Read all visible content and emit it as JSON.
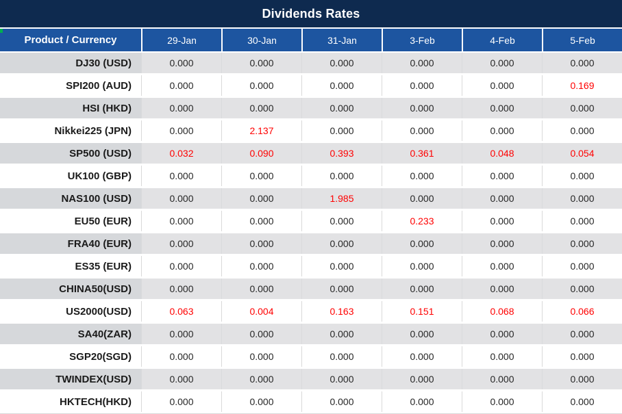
{
  "title": "Dividends Rates",
  "header": {
    "product_label": "Product / Currency",
    "dates": [
      "29-Jan",
      "30-Jan",
      "31-Jan",
      "3-Feb",
      "4-Feb",
      "5-Feb"
    ]
  },
  "rows": [
    {
      "label": "DJ30 (USD)",
      "values": [
        "0.000",
        "0.000",
        "0.000",
        "0.000",
        "0.000",
        "0.000"
      ],
      "red": [
        false,
        false,
        false,
        false,
        false,
        false
      ]
    },
    {
      "label": "SPI200 (AUD)",
      "values": [
        "0.000",
        "0.000",
        "0.000",
        "0.000",
        "0.000",
        "0.169"
      ],
      "red": [
        false,
        false,
        false,
        false,
        false,
        true
      ]
    },
    {
      "label": "HSI (HKD)",
      "values": [
        "0.000",
        "0.000",
        "0.000",
        "0.000",
        "0.000",
        "0.000"
      ],
      "red": [
        false,
        false,
        false,
        false,
        false,
        false
      ]
    },
    {
      "label": "Nikkei225 (JPN)",
      "values": [
        "0.000",
        "2.137",
        "0.000",
        "0.000",
        "0.000",
        "0.000"
      ],
      "red": [
        false,
        true,
        false,
        false,
        false,
        false
      ]
    },
    {
      "label": "SP500 (USD)",
      "values": [
        "0.032",
        "0.090",
        "0.393",
        "0.361",
        "0.048",
        "0.054"
      ],
      "red": [
        true,
        true,
        true,
        true,
        true,
        true
      ]
    },
    {
      "label": "UK100 (GBP)",
      "values": [
        "0.000",
        "0.000",
        "0.000",
        "0.000",
        "0.000",
        "0.000"
      ],
      "red": [
        false,
        false,
        false,
        false,
        false,
        false
      ]
    },
    {
      "label": "NAS100 (USD)",
      "values": [
        "0.000",
        "0.000",
        "1.985",
        "0.000",
        "0.000",
        "0.000"
      ],
      "red": [
        false,
        false,
        true,
        false,
        false,
        false
      ]
    },
    {
      "label": "EU50 (EUR)",
      "values": [
        "0.000",
        "0.000",
        "0.000",
        "0.233",
        "0.000",
        "0.000"
      ],
      "red": [
        false,
        false,
        false,
        true,
        false,
        false
      ]
    },
    {
      "label": "FRA40 (EUR)",
      "values": [
        "0.000",
        "0.000",
        "0.000",
        "0.000",
        "0.000",
        "0.000"
      ],
      "red": [
        false,
        false,
        false,
        false,
        false,
        false
      ]
    },
    {
      "label": "ES35 (EUR)",
      "values": [
        "0.000",
        "0.000",
        "0.000",
        "0.000",
        "0.000",
        "0.000"
      ],
      "red": [
        false,
        false,
        false,
        false,
        false,
        false
      ]
    },
    {
      "label": "CHINA50(USD)",
      "values": [
        "0.000",
        "0.000",
        "0.000",
        "0.000",
        "0.000",
        "0.000"
      ],
      "red": [
        false,
        false,
        false,
        false,
        false,
        false
      ]
    },
    {
      "label": "US2000(USD)",
      "values": [
        "0.063",
        "0.004",
        "0.163",
        "0.151",
        "0.068",
        "0.066"
      ],
      "red": [
        true,
        true,
        true,
        true,
        true,
        true
      ]
    },
    {
      "label": "SA40(ZAR)",
      "values": [
        "0.000",
        "0.000",
        "0.000",
        "0.000",
        "0.000",
        "0.000"
      ],
      "red": [
        false,
        false,
        false,
        false,
        false,
        false
      ]
    },
    {
      "label": "SGP20(SGD)",
      "values": [
        "0.000",
        "0.000",
        "0.000",
        "0.000",
        "0.000",
        "0.000"
      ],
      "red": [
        false,
        false,
        false,
        false,
        false,
        false
      ]
    },
    {
      "label": "TWINDEX(USD)",
      "values": [
        "0.000",
        "0.000",
        "0.000",
        "0.000",
        "0.000",
        "0.000"
      ],
      "red": [
        false,
        false,
        false,
        false,
        false,
        false
      ]
    },
    {
      "label": "HKTECH(HKD)",
      "values": [
        "0.000",
        "0.000",
        "0.000",
        "0.000",
        "0.000",
        "0.000"
      ],
      "red": [
        false,
        false,
        false,
        false,
        false,
        false
      ]
    }
  ],
  "colors": {
    "title_bg": "#0e2a4f",
    "header_bg": "#1d55a0",
    "alt_row_label_bg": "#d6d8db",
    "alt_row_value_bg": "#e2e2e4",
    "red_value": "#ff0000",
    "green_marker": "#00b050"
  }
}
